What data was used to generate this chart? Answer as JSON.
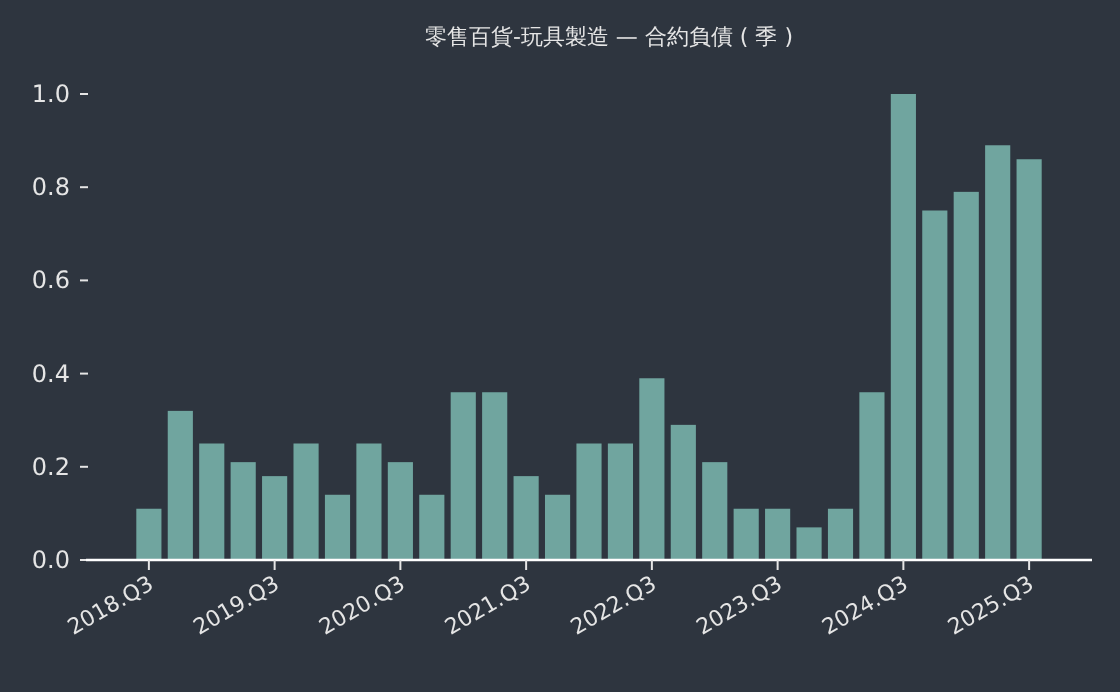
{
  "chart_data": {
    "type": "bar",
    "title": "零售百貨-玩具製造 — 合約負債 ( 季 )",
    "categories": [
      "2018.Q3",
      null,
      null,
      null,
      "2019.Q3",
      null,
      null,
      null,
      "2020.Q3",
      null,
      null,
      null,
      "2021.Q3",
      null,
      null,
      null,
      "2022.Q3",
      null,
      null,
      null,
      "2023.Q3",
      null,
      null,
      null,
      "2024.Q3",
      null,
      null,
      null,
      "2025.Q3"
    ],
    "values": [
      0.11,
      0.32,
      0.25,
      0.21,
      0.18,
      0.25,
      0.14,
      0.25,
      0.21,
      0.14,
      0.36,
      0.36,
      0.18,
      0.14,
      0.25,
      0.25,
      0.39,
      0.29,
      0.21,
      0.11,
      0.11,
      0.07,
      0.11,
      0.36,
      1.0,
      0.75,
      0.79,
      0.89,
      0.86
    ],
    "color": "#70a59f",
    "ylim": [
      0,
      1
    ],
    "yticks": [
      {
        "value": 0,
        "label": "0.0"
      },
      0.2,
      0.4,
      0.6,
      0.8,
      {
        "value": 1,
        "label": "1.0"
      }
    ],
    "grid": false
  }
}
